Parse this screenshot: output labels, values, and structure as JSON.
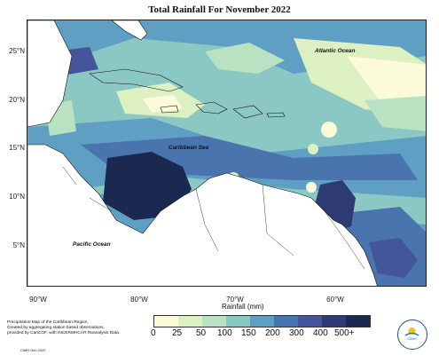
{
  "title": "Total Rainfall For November 2022",
  "latitude_labels": [
    "25°N",
    "20°N",
    "15°N",
    "10°N",
    "5°N"
  ],
  "longitude_labels": [
    "90°W",
    "80°W",
    "70°W",
    "60°W"
  ],
  "ocean_labels": {
    "atlantic": "Atlantic Ocean",
    "caribbean": "Caribbean Sea",
    "pacific": "Pacific Ocean"
  },
  "legend": {
    "title": "Rainfall (mm)",
    "ticks": [
      "0",
      "25",
      "50",
      "100",
      "150",
      "200",
      "300",
      "400",
      "500+"
    ],
    "colors": [
      "#fbfbd9",
      "#dcf0c2",
      "#b8e2c1",
      "#8cc8c3",
      "#5e9fc3",
      "#4a74ad",
      "#45559a",
      "#2e3a72",
      "#1b2850"
    ]
  },
  "footnote": {
    "line1": "Precipitation Map of the Caribbean Region,",
    "line2": "Created by aggregating station based observations,",
    "line3": "provided by CariCOF, with INCERMHCAR Reanalysis Data."
  },
  "credit": "CIMH Dec 2022",
  "logo": {
    "text": "CIMH",
    "icon": "cimh-logo-icon"
  }
}
